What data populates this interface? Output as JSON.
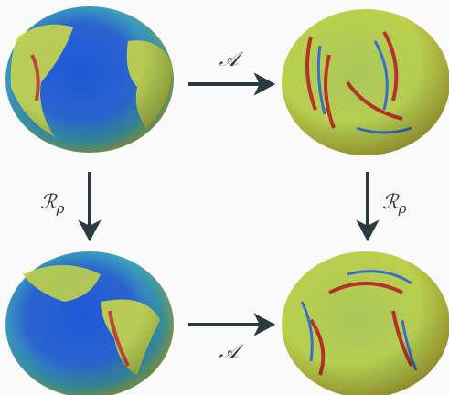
{
  "arrows": {
    "top": {
      "label": "𝒜"
    },
    "bottom": {
      "label": "𝒜"
    },
    "left": {
      "symbol": "ℛ",
      "subscript": "ρ"
    },
    "right": {
      "symbol": "ℛ",
      "subscript": "ρ"
    }
  }
}
